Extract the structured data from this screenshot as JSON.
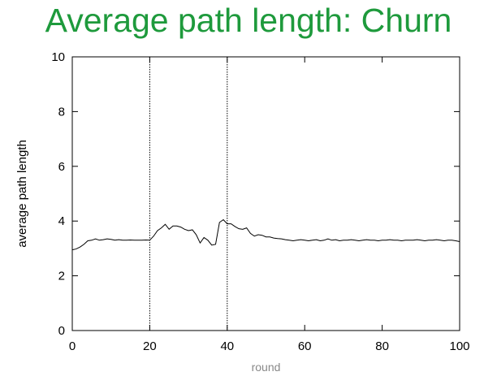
{
  "title": "Average path length: Churn",
  "chart_data": {
    "type": "line",
    "title": "Average path length: Churn",
    "xlabel": "round",
    "ylabel": "average path length",
    "xlim": [
      0,
      100
    ],
    "ylim": [
      0,
      10
    ],
    "xticks": [
      0,
      20,
      40,
      60,
      80,
      100
    ],
    "yticks": [
      0,
      2,
      4,
      6,
      8,
      10
    ],
    "grid": false,
    "vertical_markers": [
      20,
      40
    ],
    "series": [
      {
        "x": [
          0,
          1,
          2,
          3,
          4,
          5,
          6,
          7,
          8,
          9,
          10,
          11,
          12,
          13,
          14,
          15,
          16,
          17,
          18,
          19,
          20,
          21,
          22,
          23,
          24,
          25,
          26,
          27,
          28,
          29,
          30,
          31,
          32,
          33,
          34,
          35,
          36,
          37,
          38,
          39,
          40,
          41,
          42,
          43,
          44,
          45,
          46,
          47,
          48,
          49,
          50,
          51,
          52,
          53,
          54,
          55,
          56,
          57,
          58,
          59,
          60,
          61,
          62,
          63,
          64,
          65,
          66,
          67,
          68,
          69,
          70,
          71,
          72,
          73,
          74,
          75,
          76,
          77,
          78,
          79,
          80,
          81,
          82,
          83,
          84,
          85,
          86,
          87,
          88,
          89,
          90,
          91,
          92,
          93,
          94,
          95,
          96,
          97,
          98,
          99,
          100
        ],
        "values": [
          2.95,
          2.98,
          3.05,
          3.15,
          3.28,
          3.3,
          3.35,
          3.3,
          3.32,
          3.35,
          3.33,
          3.3,
          3.32,
          3.3,
          3.3,
          3.31,
          3.3,
          3.3,
          3.3,
          3.31,
          3.3,
          3.45,
          3.65,
          3.75,
          3.88,
          3.7,
          3.82,
          3.82,
          3.78,
          3.7,
          3.65,
          3.68,
          3.5,
          3.2,
          3.4,
          3.3,
          3.12,
          3.15,
          3.95,
          4.05,
          3.9,
          3.9,
          3.8,
          3.72,
          3.7,
          3.75,
          3.55,
          3.45,
          3.5,
          3.48,
          3.42,
          3.42,
          3.38,
          3.36,
          3.35,
          3.32,
          3.3,
          3.28,
          3.3,
          3.32,
          3.3,
          3.28,
          3.3,
          3.32,
          3.28,
          3.3,
          3.35,
          3.3,
          3.32,
          3.28,
          3.3,
          3.3,
          3.32,
          3.3,
          3.28,
          3.3,
          3.32,
          3.3,
          3.3,
          3.28,
          3.3,
          3.3,
          3.32,
          3.3,
          3.3,
          3.28,
          3.3,
          3.3,
          3.3,
          3.32,
          3.3,
          3.28,
          3.3,
          3.3,
          3.32,
          3.3,
          3.28,
          3.3,
          3.3,
          3.28,
          3.25
        ]
      }
    ]
  }
}
